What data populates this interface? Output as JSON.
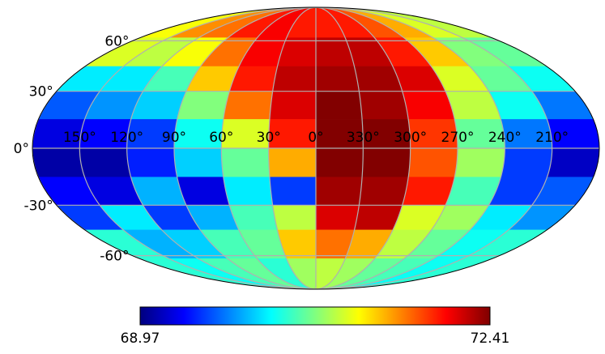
{
  "chart_data": {
    "type": "heatmap",
    "projection": "mollweide",
    "colormap": "jet",
    "grid": true,
    "colorbar": {
      "position": "bottom",
      "min": 68.97,
      "max": 72.41,
      "min_label": "68.97",
      "max_label": "72.41"
    },
    "lon_tick_labels": [
      {
        "lon": 150,
        "label": "150°"
      },
      {
        "lon": 120,
        "label": "120°"
      },
      {
        "lon": 90,
        "label": "90°"
      },
      {
        "lon": 60,
        "label": "60°"
      },
      {
        "lon": 30,
        "label": "30°"
      },
      {
        "lon": 0,
        "label": "0°"
      },
      {
        "lon": -30,
        "label": "330°"
      },
      {
        "lon": -60,
        "label": "300°"
      },
      {
        "lon": -90,
        "label": "270°"
      },
      {
        "lon": -120,
        "label": "240°"
      },
      {
        "lon": -150,
        "label": "210°"
      }
    ],
    "lat_tick_labels": [
      {
        "lat": 60,
        "label": "60°"
      },
      {
        "lat": 30,
        "label": "30°"
      },
      {
        "lat": 0,
        "label": "0°"
      },
      {
        "lat": -30,
        "label": "-30°"
      },
      {
        "lat": -60,
        "label": "-60°"
      }
    ],
    "pixel_values": {
      "note_units": "same units as colorbar",
      "lat_band_edges": [
        90,
        62,
        44,
        30,
        15,
        0,
        -15,
        -30,
        -44,
        -62,
        -90
      ],
      "lon_cell_edges": [
        180,
        150,
        120,
        90,
        60,
        30,
        0,
        -30,
        -60,
        -90,
        -120,
        -150,
        -180
      ],
      "rows": [
        [
          71.1,
          71.5,
          71.6,
          71.9,
          72.0,
          71.9,
          71.9,
          71.9,
          71.7,
          71.4,
          71.0,
          70.9
        ],
        [
          71.0,
          70.9,
          71.1,
          71.6,
          72.0,
          72.1,
          72.2,
          72.2,
          71.9,
          71.3,
          70.7,
          70.6
        ],
        [
          70.2,
          70.2,
          70.5,
          71.3,
          71.9,
          72.2,
          72.3,
          72.3,
          72.1,
          71.0,
          70.6,
          70.3
        ],
        [
          69.7,
          69.9,
          70.1,
          70.7,
          71.6,
          72.1,
          72.4,
          72.3,
          72.0,
          70.9,
          70.3,
          69.8
        ],
        [
          69.3,
          69.4,
          69.6,
          70.3,
          71.0,
          71.9,
          72.4,
          72.4,
          71.8,
          70.6,
          69.8,
          69.4
        ],
        [
          69.1,
          69.1,
          69.5,
          70.1,
          70.6,
          71.4,
          72.4,
          72.4,
          71.7,
          70.8,
          69.6,
          69.2
        ],
        [
          69.4,
          69.3,
          70.0,
          69.3,
          70.2,
          69.6,
          72.3,
          72.3,
          71.9,
          70.5,
          69.6,
          69.7
        ],
        [
          69.6,
          70.2,
          69.6,
          70.0,
          70.5,
          70.9,
          72.1,
          72.2,
          71.0,
          70.8,
          70.2,
          69.9
        ],
        [
          70.4,
          70.0,
          70.1,
          70.5,
          70.6,
          71.3,
          71.6,
          71.4,
          70.9,
          70.6,
          70.3,
          70.4
        ],
        [
          70.4,
          70.3,
          70.5,
          70.6,
          70.4,
          70.8,
          70.9,
          70.8,
          70.6,
          70.5,
          70.3,
          70.4
        ]
      ]
    }
  }
}
